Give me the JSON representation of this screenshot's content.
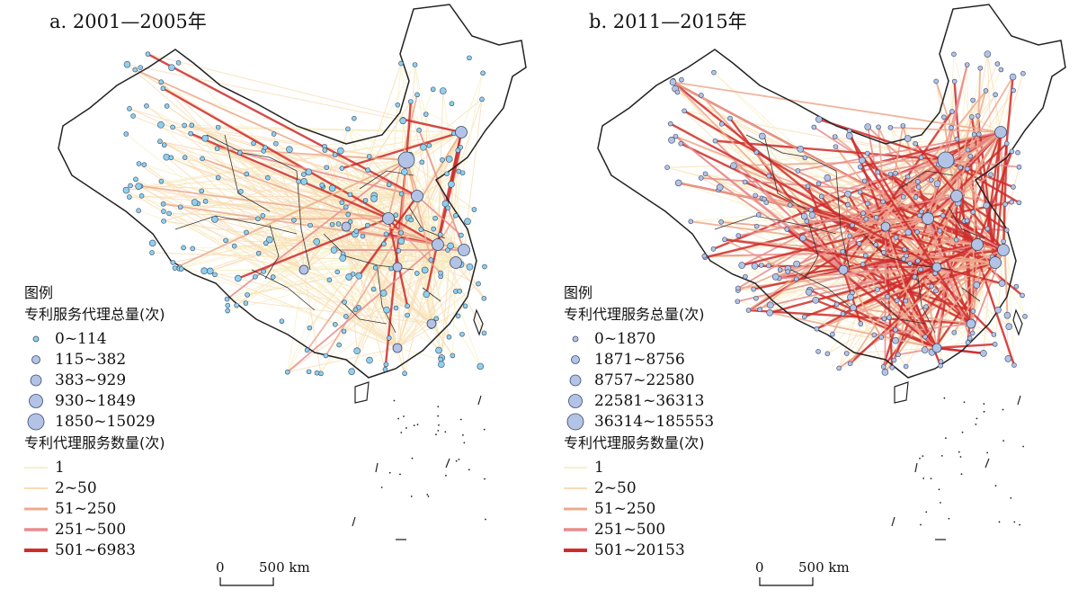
{
  "panels": [
    {
      "title": "a. 2001—2005年",
      "legend_title": "图例",
      "node_title": "专利服务代理总量(次)",
      "node_classes": [
        "0~114",
        "115~382",
        "383~929",
        "930~1849",
        "1850~15029"
      ],
      "link_title": "专利代理服务数量(次)",
      "link_classes": [
        "1",
        "2~50",
        "51~250",
        "251~500",
        "501~6983"
      ],
      "scale_zero": "0",
      "scale_label": "500 km"
    },
    {
      "title": "b. 2011—2015年",
      "legend_title": "图例",
      "node_title": "专利代理服务总量(次)",
      "node_classes": [
        "0~1870",
        "1871~8756",
        "8757~22580",
        "22581~36313",
        "36314~185553"
      ],
      "link_title": "专利代理服务数量(次)",
      "link_classes": [
        "1",
        "2~50",
        "51~250",
        "251~500",
        "501~20153"
      ],
      "scale_zero": "0",
      "scale_label": "500 km"
    }
  ],
  "colors": {
    "node_fill_small": "#8fd0ec",
    "node_fill": "#b3c3e6",
    "node_stroke": "#3a4a6a",
    "link_1": "#f6f2c8",
    "link_2": "#f9dcb4",
    "link_3": "#eda98e",
    "link_4": "#e88b8d",
    "link_5": "#cf2c2c",
    "boundary": "#222222"
  }
}
